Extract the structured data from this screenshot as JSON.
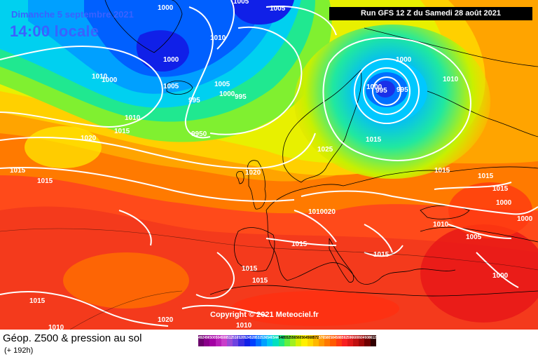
{
  "header": {
    "date": "Dimanche 5 septembre 2021",
    "time": "14:00 locale",
    "run": "Run GFS 12 Z du Samedi 28 août 2021",
    "copyright": "Copyright © 2021 Meteociel.fr"
  },
  "legend": {
    "title": "Géop. Z500 & pression au sol",
    "subtitle": "(+ 192h)",
    "scale": [
      {
        "value": "492",
        "color": "#6b006b"
      },
      {
        "value": "496",
        "color": "#8a008a"
      },
      {
        "value": "500",
        "color": "#a300a3"
      },
      {
        "value": "504",
        "color": "#b81fb8"
      },
      {
        "value": "508",
        "color": "#c93dc9"
      },
      {
        "value": "512",
        "color": "#9a4bd6"
      },
      {
        "value": "516",
        "color": "#6e43e0"
      },
      {
        "value": "520",
        "color": "#3b2de0"
      },
      {
        "value": "524",
        "color": "#1020e8"
      },
      {
        "value": "528",
        "color": "#0040ff"
      },
      {
        "value": "532",
        "color": "#0070ff"
      },
      {
        "value": "536",
        "color": "#00a0ff"
      },
      {
        "value": "540",
        "color": "#00c8f0"
      },
      {
        "value": "544",
        "color": "#00e0c0"
      },
      {
        "value": "548",
        "color": "#20e880"
      },
      {
        "value": "552",
        "color": "#60f040"
      },
      {
        "value": "556",
        "color": "#a0f020"
      },
      {
        "value": "560",
        "color": "#d8f000"
      },
      {
        "value": "564",
        "color": "#fff000"
      },
      {
        "value": "568",
        "color": "#ffd800"
      },
      {
        "value": "572",
        "color": "#ffb800"
      },
      {
        "value": "576",
        "color": "#ff9800"
      },
      {
        "value": "580",
        "color": "#ff7800"
      },
      {
        "value": "584",
        "color": "#ff5a00"
      },
      {
        "value": "588",
        "color": "#ff3a10"
      },
      {
        "value": "592",
        "color": "#f82020"
      },
      {
        "value": "596",
        "color": "#e01818"
      },
      {
        "value": "600",
        "color": "#c01010"
      },
      {
        "value": "604",
        "color": "#a00808"
      },
      {
        "value": "608",
        "color": "#700000"
      },
      {
        "value": "612",
        "color": "#300000"
      }
    ]
  },
  "pressure_labels": [
    "1000",
    "1005",
    "1005",
    "1010",
    "1000",
    "1010",
    "1000",
    "1000",
    "1005",
    "995",
    "1000",
    "995",
    "1000",
    "9950",
    "1010",
    "1015",
    "1020",
    "1000",
    "1000",
    "1000",
    "995",
    "1010",
    "1015",
    "1025",
    "1020",
    "1015",
    "1015",
    "1015",
    "1015",
    "1000",
    "1000",
    "1010020",
    "1015",
    "1010",
    "1005",
    "1015",
    "1015",
    "1015",
    "1000",
    "1015",
    "1010",
    "1020",
    "1010"
  ]
}
